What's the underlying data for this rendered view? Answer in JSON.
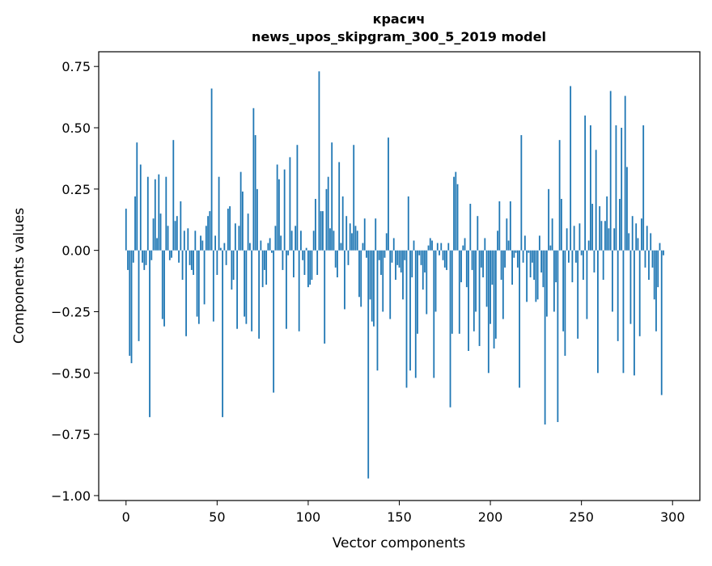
{
  "chart_data": {
    "type": "bar",
    "title": "красич",
    "subtitle": "news_upos_skipgram_300_5_2019 model",
    "xlabel": "Vector components",
    "ylabel": "Components values",
    "xlim": [
      -15,
      315
    ],
    "ylim": [
      -1.02,
      0.81
    ],
    "xticks": [
      0,
      50,
      100,
      150,
      200,
      250,
      300
    ],
    "yticks": [
      -1.0,
      -0.75,
      -0.5,
      -0.25,
      0.0,
      0.25,
      0.5,
      0.75
    ],
    "xtick_labels": [
      "0",
      "50",
      "100",
      "150",
      "200",
      "250",
      "300"
    ],
    "ytick_labels": [
      "−1.00",
      "−0.75",
      "−0.50",
      "−0.25",
      "0.00",
      "0.25",
      "0.50",
      "0.75"
    ],
    "grid": false,
    "bar_color": "#1f77b4",
    "values": [
      0.17,
      -0.08,
      -0.43,
      -0.46,
      -0.05,
      0.22,
      0.44,
      -0.37,
      0.35,
      -0.05,
      -0.08,
      -0.06,
      0.3,
      -0.68,
      -0.04,
      0.13,
      0.29,
      0.05,
      0.31,
      0.15,
      -0.28,
      -0.31,
      0.3,
      0.1,
      -0.04,
      -0.03,
      0.45,
      0.12,
      0.14,
      -0.05,
      0.2,
      -0.12,
      0.08,
      -0.35,
      0.09,
      -0.06,
      -0.08,
      -0.1,
      0.08,
      -0.27,
      -0.3,
      0.06,
      0.04,
      -0.22,
      0.1,
      0.14,
      0.16,
      0.66,
      -0.29,
      0.06,
      -0.1,
      0.3,
      0.01,
      -0.68,
      0.03,
      -0.06,
      0.17,
      0.18,
      -0.16,
      -0.12,
      0.11,
      -0.32,
      0.1,
      0.32,
      0.24,
      -0.27,
      -0.3,
      0.15,
      0.03,
      -0.33,
      0.58,
      0.47,
      0.25,
      -0.36,
      0.04,
      -0.15,
      -0.08,
      -0.14,
      0.03,
      0.05,
      -0.01,
      -0.58,
      0.1,
      0.35,
      0.29,
      0.06,
      -0.08,
      0.33,
      -0.32,
      -0.02,
      0.38,
      0.08,
      -0.11,
      0.1,
      0.43,
      -0.33,
      0.08,
      -0.04,
      -0.1,
      0.01,
      -0.15,
      -0.14,
      -0.12,
      0.08,
      0.21,
      -0.1,
      0.73,
      0.16,
      0.16,
      -0.38,
      0.25,
      0.3,
      0.09,
      0.44,
      0.08,
      -0.07,
      -0.11,
      0.36,
      0.03,
      0.22,
      -0.24,
      0.14,
      -0.06,
      0.11,
      0.07,
      0.43,
      0.1,
      0.08,
      -0.19,
      -0.23,
      0.03,
      0.13,
      -0.03,
      -0.93,
      -0.2,
      -0.29,
      -0.31,
      0.13,
      -0.49,
      -0.04,
      -0.1,
      -0.25,
      -0.03,
      0.07,
      0.46,
      -0.28,
      -0.05,
      0.05,
      -0.12,
      -0.06,
      -0.07,
      -0.09,
      -0.2,
      -0.04,
      -0.56,
      0.22,
      -0.49,
      -0.11,
      0.04,
      -0.52,
      -0.34,
      -0.02,
      -0.06,
      -0.16,
      -0.09,
      -0.26,
      0.02,
      0.05,
      0.04,
      -0.52,
      -0.25,
      0.03,
      -0.02,
      0.03,
      -0.04,
      -0.07,
      -0.08,
      0.03,
      -0.64,
      -0.34,
      0.3,
      0.32,
      0.27,
      -0.34,
      -0.13,
      0.02,
      0.05,
      -0.15,
      -0.41,
      0.19,
      -0.08,
      -0.33,
      -0.25,
      0.14,
      -0.39,
      -0.07,
      -0.11,
      0.05,
      -0.23,
      -0.5,
      -0.3,
      -0.14,
      -0.4,
      -0.36,
      0.08,
      0.2,
      -0.12,
      -0.28,
      -0.07,
      0.13,
      0.04,
      0.2,
      -0.14,
      -0.03,
      -0.01,
      -0.07,
      -0.56,
      0.47,
      -0.05,
      0.06,
      -0.21,
      -0.01,
      -0.11,
      -0.05,
      -0.12,
      -0.21,
      -0.2,
      0.06,
      -0.09,
      -0.15,
      -0.71,
      -0.27,
      0.25,
      0.02,
      0.13,
      -0.25,
      -0.13,
      -0.7,
      0.45,
      0.21,
      -0.33,
      -0.43,
      0.09,
      -0.05,
      0.67,
      -0.13,
      0.1,
      -0.05,
      -0.36,
      0.11,
      -0.02,
      -0.12,
      0.55,
      -0.28,
      0.04,
      0.51,
      0.19,
      -0.09,
      0.41,
      -0.5,
      0.18,
      0.12,
      -0.12,
      0.12,
      0.22,
      0.09,
      0.65,
      -0.25,
      0.09,
      0.51,
      -0.37,
      0.21,
      0.5,
      -0.5,
      0.63,
      0.34,
      0.07,
      -0.3,
      0.14,
      -0.51,
      0.11,
      0.05,
      -0.35,
      0.13,
      0.51,
      -0.07,
      0.1,
      -0.12,
      0.07,
      -0.07,
      -0.2,
      -0.33,
      -0.15,
      0.03,
      -0.59,
      -0.02
    ]
  }
}
